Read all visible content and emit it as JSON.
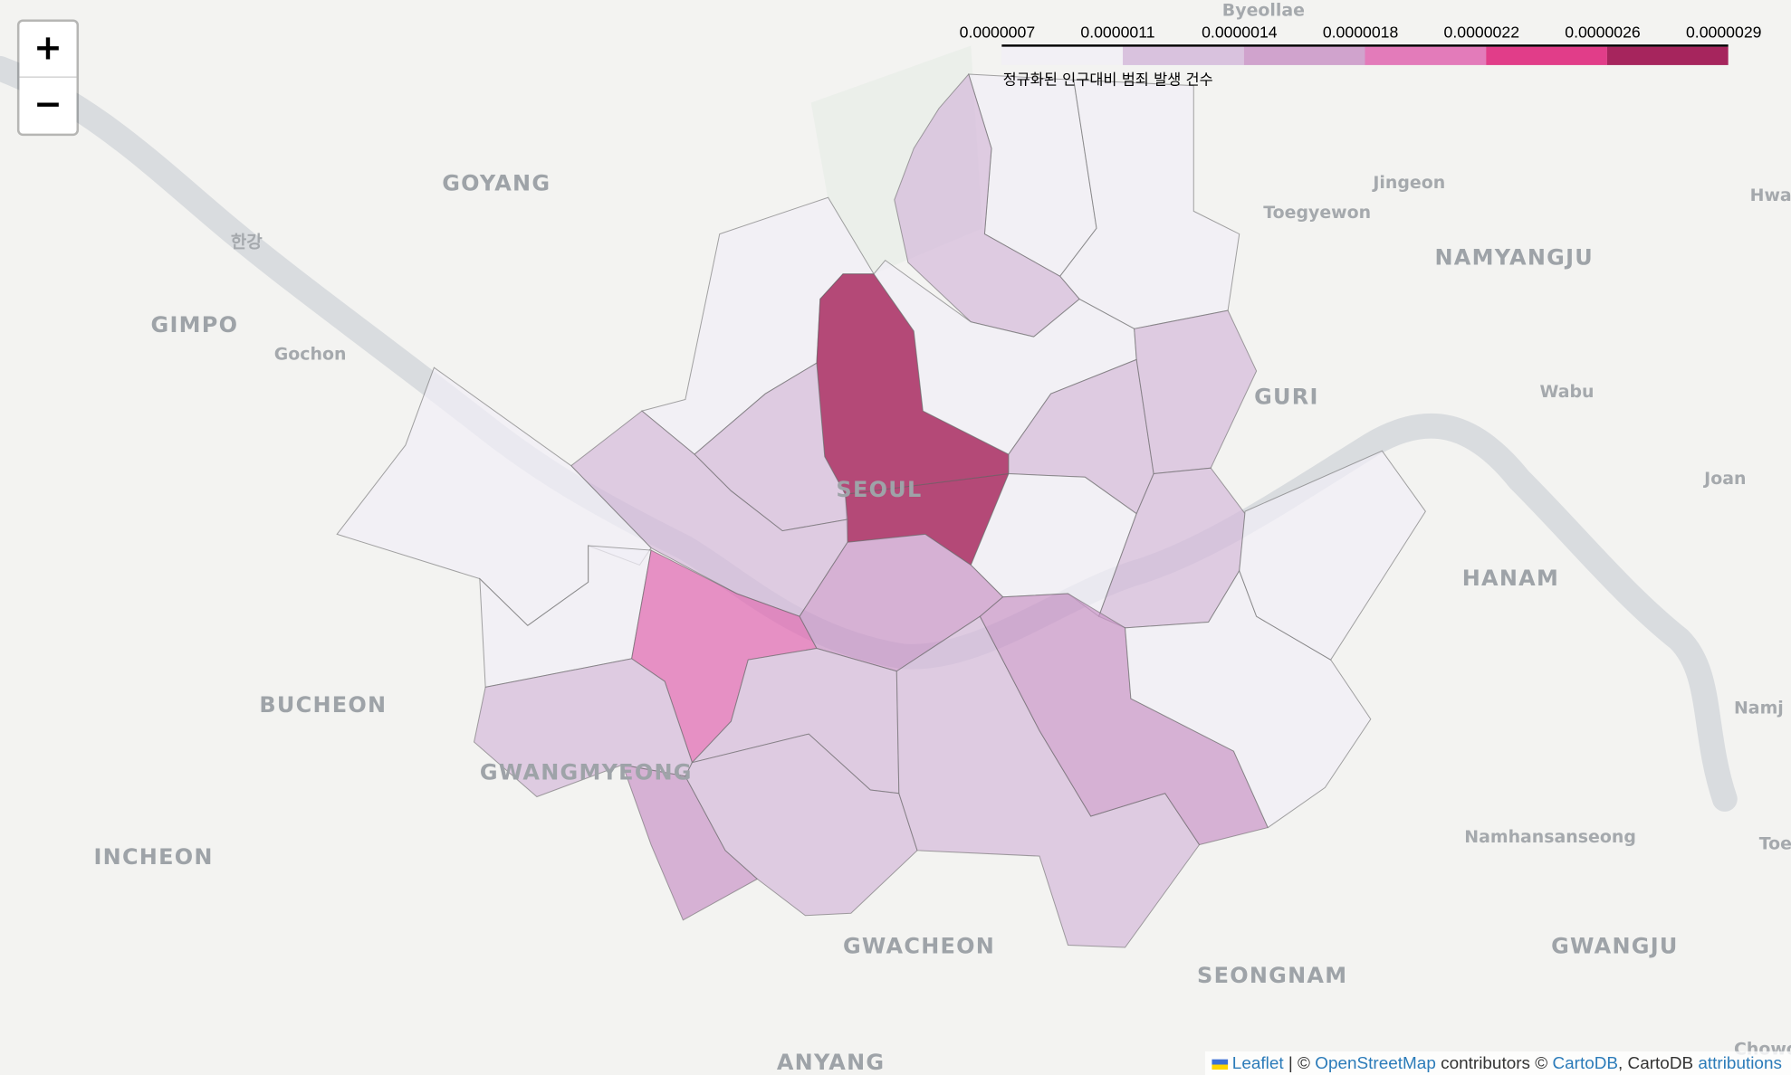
{
  "map": {
    "place_labels": [
      {
        "text": "Byeollae",
        "size": "small"
      },
      {
        "text": "GOYANG",
        "size": "big"
      },
      {
        "text": "한강",
        "size": "small"
      },
      {
        "text": "GIMPO",
        "size": "big"
      },
      {
        "text": "Gochon",
        "size": "small"
      },
      {
        "text": "Jingeon",
        "size": "small"
      },
      {
        "text": "Toegyewon",
        "size": "small"
      },
      {
        "text": "NAMYANGJU",
        "size": "big"
      },
      {
        "text": "Hwa",
        "size": "small"
      },
      {
        "text": "GURI",
        "size": "big"
      },
      {
        "text": "Wabu",
        "size": "small"
      },
      {
        "text": "Joan",
        "size": "small"
      },
      {
        "text": "SEOUL",
        "size": "big"
      },
      {
        "text": "HANAM",
        "size": "big"
      },
      {
        "text": "BUCHEON",
        "size": "big"
      },
      {
        "text": "GWANGMYEONG",
        "size": "big"
      },
      {
        "text": "Namj",
        "size": "small"
      },
      {
        "text": "INCHEON",
        "size": "big"
      },
      {
        "text": "Namhansanseong",
        "size": "small"
      },
      {
        "text": "Toe",
        "size": "small"
      },
      {
        "text": "GWACHEON",
        "size": "big"
      },
      {
        "text": "SEONGNAM",
        "size": "big"
      },
      {
        "text": "GWANGJU",
        "size": "big"
      },
      {
        "text": "ANYANG",
        "size": "big"
      },
      {
        "text": "Chowo",
        "size": "small"
      }
    ],
    "district_fill_bins": [
      0,
      0,
      1,
      0,
      5,
      5,
      0,
      1,
      1,
      1,
      1,
      0,
      1,
      0,
      0,
      3,
      2,
      1,
      2,
      1,
      1,
      1,
      2,
      0,
      0
    ],
    "fill_opacity": 0.7
  },
  "legend": {
    "title": "정규화된 인구대비 범죄 발생 건수",
    "ticks": [
      "0.0000007",
      "0.0000011",
      "0.0000014",
      "0.0000018",
      "0.0000022",
      "0.0000026",
      "0.0000029"
    ],
    "colors": [
      "#f1eef6",
      "#d4b9da",
      "#c994c7",
      "#df65b0",
      "#dd1c77",
      "#980043"
    ]
  },
  "zoom_controls": {
    "zoom_in": "+",
    "zoom_out": "−"
  },
  "attribution": {
    "leaflet": "Leaflet",
    "sep": " | © ",
    "osm": "OpenStreetMap",
    "contrib": " contributors © ",
    "cartodb": "CartoDB",
    "comma": ", CartoDB ",
    "attributions": "attributions"
  }
}
